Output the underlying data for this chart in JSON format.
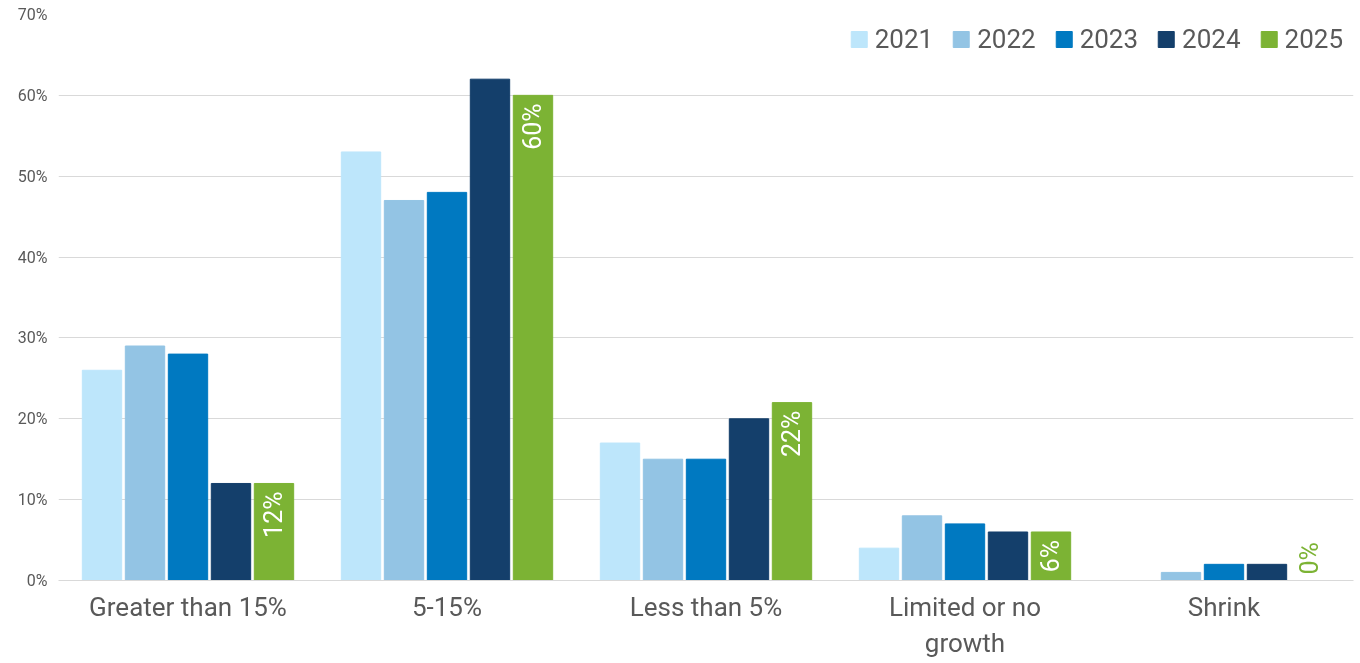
{
  "chart_data": {
    "type": "bar",
    "categories": [
      "Greater than 15%",
      "5-15%",
      "Less than 5%",
      "Limited or no growth",
      "Shrink"
    ],
    "series": [
      {
        "name": "2021",
        "color": "#bde6fb",
        "values": [
          26,
          53,
          17,
          4,
          0
        ]
      },
      {
        "name": "2022",
        "color": "#93c4e4",
        "values": [
          29,
          47,
          15,
          8,
          1
        ]
      },
      {
        "name": "2023",
        "color": "#0079c1",
        "values": [
          28,
          48,
          15,
          7,
          2
        ]
      },
      {
        "name": "2024",
        "color": "#143f6b",
        "values": [
          12,
          62,
          20,
          6,
          2
        ]
      },
      {
        "name": "2025",
        "color": "#7cb334",
        "values": [
          12,
          60,
          22,
          6,
          0
        ],
        "value_labels": [
          "12%",
          "60%",
          "22%",
          "6%",
          "0%"
        ]
      }
    ],
    "ylim": [
      0,
      70
    ],
    "yticks": [
      {
        "value": 0,
        "label": "0%"
      },
      {
        "value": 10,
        "label": "10%"
      },
      {
        "value": 20,
        "label": "20%"
      },
      {
        "value": 30,
        "label": "30%"
      },
      {
        "value": 40,
        "label": "40%"
      },
      {
        "value": 50,
        "label": "50%"
      },
      {
        "value": 60,
        "label": "60%"
      },
      {
        "value": 70,
        "label": "70%"
      }
    ],
    "grid": "y",
    "legend": "top right"
  }
}
